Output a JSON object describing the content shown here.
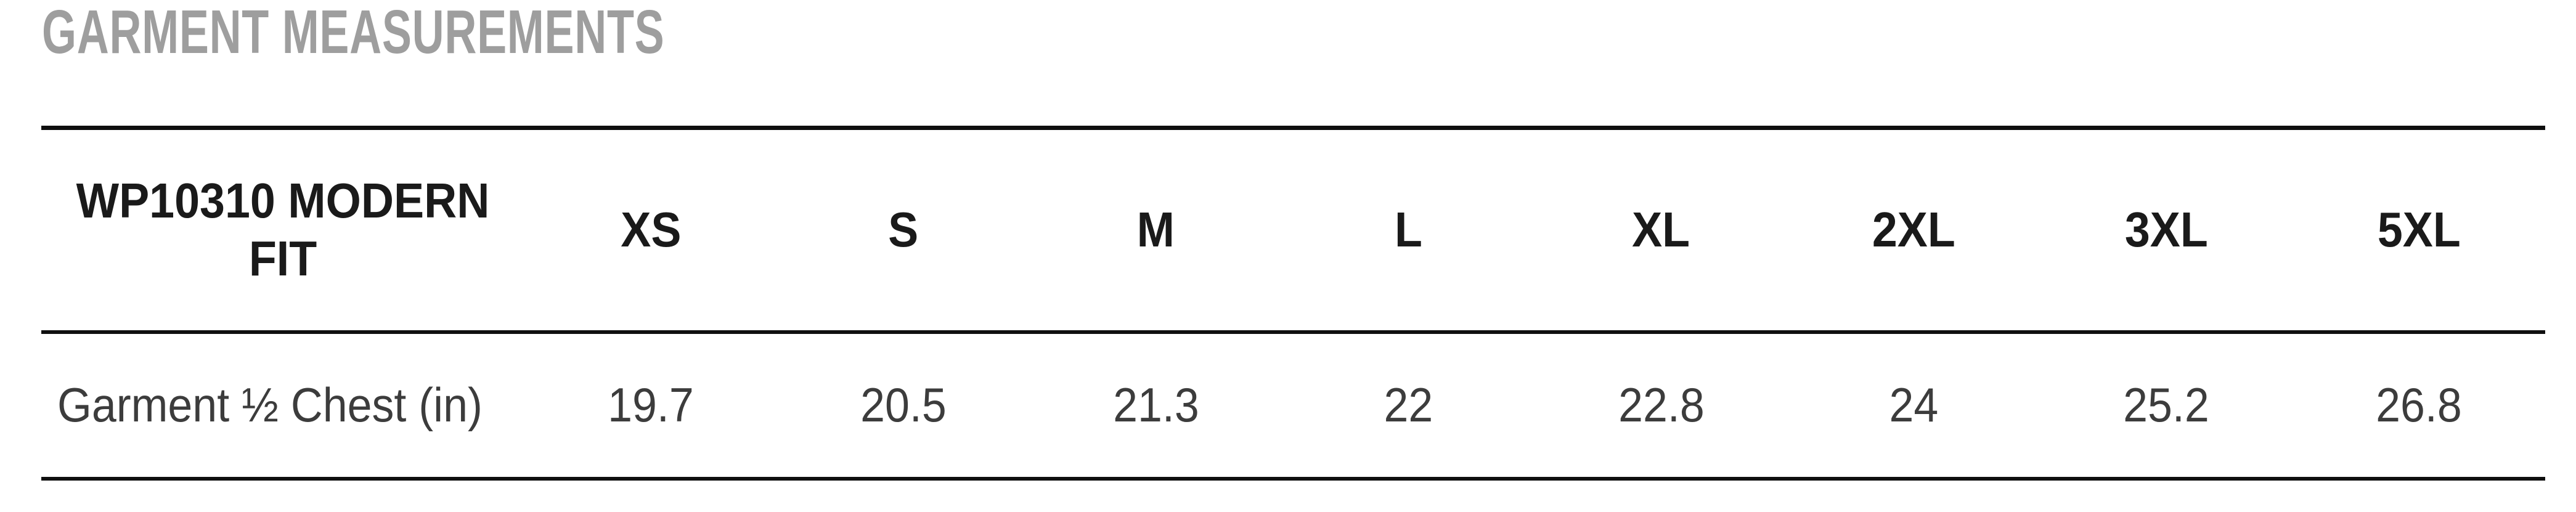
{
  "page": {
    "title": "GARMENT MEASUREMENTS"
  },
  "table": {
    "header": {
      "product_label": "WP10310 MODERN FIT",
      "sizes": [
        "XS",
        "S",
        "M",
        "L",
        "XL",
        "2XL",
        "3XL",
        "5XL"
      ]
    },
    "rows": [
      {
        "label": "Garment ½ Chest (in)",
        "values": [
          "19.7",
          "20.5",
          "21.3",
          "22",
          "22.8",
          "24",
          "25.2",
          "26.8"
        ]
      }
    ]
  },
  "colors": {
    "title_text": "#9e9e9e",
    "header_text": "#1a1a1a",
    "body_text": "#3c3c3c",
    "border": "#0f0f0f",
    "background": "#ffffff"
  },
  "chart_data": {
    "type": "table",
    "title": "GARMENT MEASUREMENTS",
    "columns": [
      "WP10310 MODERN FIT",
      "XS",
      "S",
      "M",
      "L",
      "XL",
      "2XL",
      "3XL",
      "5XL"
    ],
    "rows": [
      [
        "Garment ½ Chest (in)",
        19.7,
        20.5,
        21.3,
        22,
        22.8,
        24,
        25.2,
        26.8
      ]
    ]
  }
}
